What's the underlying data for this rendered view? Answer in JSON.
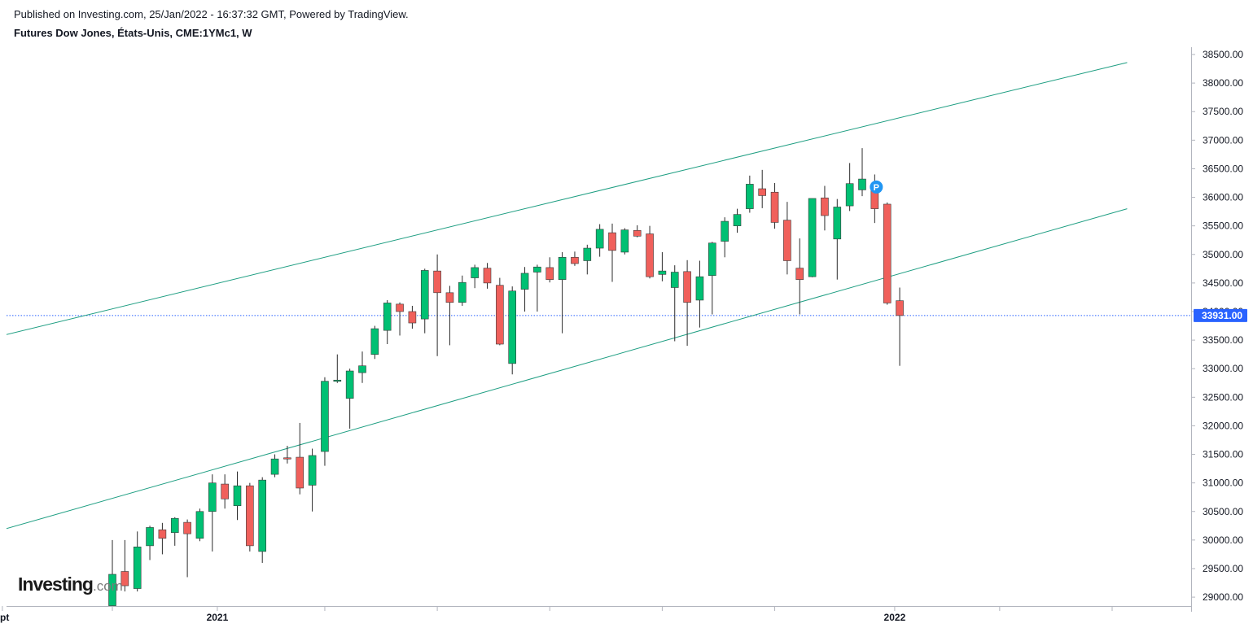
{
  "header": {
    "published": "Published on Investing.com, 25/Jan/2022 - 16:37:32 GMT, Powered by TradingView.",
    "symbol": "Futures Dow Jones, États-Unis, CME:1YMc1, W"
  },
  "logo": {
    "text": "Investing",
    "suffix": ".com"
  },
  "chart_data": {
    "type": "candlestick",
    "interval": "weekly",
    "ylim": [
      28850,
      38700
    ],
    "y_ticks": [
      "38500.00",
      "38000.00",
      "37500.00",
      "37000.00",
      "36500.00",
      "36000.00",
      "35500.00",
      "35000.00",
      "34500.00",
      "34000.00",
      "33500.00",
      "33000.00",
      "32500.00",
      "32000.00",
      "31500.00",
      "31000.00",
      "30500.00",
      "30000.00",
      "29500.00",
      "29000.00"
    ],
    "x_labels": [
      {
        "label": "pt",
        "week": -8.8
      },
      {
        "label": "2021",
        "week": 8.4
      },
      {
        "label": "2022",
        "week": 62.6
      }
    ],
    "x_ticks_weeks": [
      -8.8,
      0,
      8.4,
      17,
      26,
      35,
      44,
      53,
      62.6,
      71,
      80
    ],
    "current_price": {
      "value": 33931,
      "label": "33931.00"
    },
    "colors": {
      "up": "#00c073",
      "down": "#f0605b",
      "wick": "#2b2b2b",
      "channel": "#1e9e82",
      "price_line": "#2962ff",
      "marker": "#2196f3"
    },
    "candles": [
      {
        "o": 28850,
        "h": 30000,
        "l": 28850,
        "c": 29400
      },
      {
        "o": 29450,
        "h": 30000,
        "l": 29100,
        "c": 29200
      },
      {
        "o": 29150,
        "h": 30150,
        "l": 29100,
        "c": 29880
      },
      {
        "o": 29900,
        "h": 30250,
        "l": 29650,
        "c": 30220
      },
      {
        "o": 30180,
        "h": 30300,
        "l": 29750,
        "c": 30030
      },
      {
        "o": 30130,
        "h": 30400,
        "l": 29900,
        "c": 30380
      },
      {
        "o": 30310,
        "h": 30360,
        "l": 29350,
        "c": 30110
      },
      {
        "o": 30030,
        "h": 30550,
        "l": 29980,
        "c": 30500
      },
      {
        "o": 30500,
        "h": 31150,
        "l": 29800,
        "c": 31000
      },
      {
        "o": 30980,
        "h": 31150,
        "l": 30550,
        "c": 30720
      },
      {
        "o": 30600,
        "h": 31200,
        "l": 30350,
        "c": 30950
      },
      {
        "o": 30950,
        "h": 31000,
        "l": 29800,
        "c": 29900
      },
      {
        "o": 29800,
        "h": 31100,
        "l": 29600,
        "c": 31050
      },
      {
        "o": 31150,
        "h": 31500,
        "l": 31100,
        "c": 31420
      },
      {
        "o": 31440,
        "h": 31650,
        "l": 31340,
        "c": 31420
      },
      {
        "o": 31450,
        "h": 32050,
        "l": 30800,
        "c": 30910
      },
      {
        "o": 30960,
        "h": 31600,
        "l": 30500,
        "c": 31480
      },
      {
        "o": 31550,
        "h": 32850,
        "l": 31300,
        "c": 32780
      },
      {
        "o": 32800,
        "h": 33250,
        "l": 32750,
        "c": 32800
      },
      {
        "o": 32480,
        "h": 33000,
        "l": 31950,
        "c": 32960
      },
      {
        "o": 32930,
        "h": 33300,
        "l": 32750,
        "c": 33050
      },
      {
        "o": 33250,
        "h": 33750,
        "l": 33170,
        "c": 33700
      },
      {
        "o": 33670,
        "h": 34200,
        "l": 33430,
        "c": 34150
      },
      {
        "o": 34130,
        "h": 34160,
        "l": 33580,
        "c": 34000
      },
      {
        "o": 34000,
        "h": 34100,
        "l": 33700,
        "c": 33800
      },
      {
        "o": 33870,
        "h": 34750,
        "l": 33620,
        "c": 34720
      },
      {
        "o": 34710,
        "h": 35000,
        "l": 33220,
        "c": 34330
      },
      {
        "o": 34330,
        "h": 34450,
        "l": 33410,
        "c": 34160
      },
      {
        "o": 34160,
        "h": 34630,
        "l": 34100,
        "c": 34510
      },
      {
        "o": 34590,
        "h": 34820,
        "l": 34410,
        "c": 34770
      },
      {
        "o": 34760,
        "h": 34850,
        "l": 34400,
        "c": 34500
      },
      {
        "o": 34460,
        "h": 34590,
        "l": 33410,
        "c": 33430
      },
      {
        "o": 33090,
        "h": 34440,
        "l": 32900,
        "c": 34360
      },
      {
        "o": 34390,
        "h": 34780,
        "l": 34000,
        "c": 34670
      },
      {
        "o": 34690,
        "h": 34820,
        "l": 34000,
        "c": 34780
      },
      {
        "o": 34770,
        "h": 34950,
        "l": 34510,
        "c": 34560
      },
      {
        "o": 34560,
        "h": 35040,
        "l": 33620,
        "c": 34950
      },
      {
        "o": 34950,
        "h": 35050,
        "l": 34800,
        "c": 34840
      },
      {
        "o": 34890,
        "h": 35170,
        "l": 34650,
        "c": 35110
      },
      {
        "o": 35110,
        "h": 35530,
        "l": 34960,
        "c": 35440
      },
      {
        "o": 35380,
        "h": 35540,
        "l": 34520,
        "c": 35070
      },
      {
        "o": 35040,
        "h": 35460,
        "l": 35000,
        "c": 35430
      },
      {
        "o": 35420,
        "h": 35510,
        "l": 35300,
        "c": 35320
      },
      {
        "o": 35360,
        "h": 35500,
        "l": 34580,
        "c": 34610
      },
      {
        "o": 34650,
        "h": 35040,
        "l": 34530,
        "c": 34710
      },
      {
        "o": 34420,
        "h": 34810,
        "l": 33480,
        "c": 34690
      },
      {
        "o": 34700,
        "h": 34900,
        "l": 33400,
        "c": 34160
      },
      {
        "o": 34200,
        "h": 34890,
        "l": 33720,
        "c": 34610
      },
      {
        "o": 34630,
        "h": 35220,
        "l": 33950,
        "c": 35200
      },
      {
        "o": 35230,
        "h": 35650,
        "l": 34950,
        "c": 35580
      },
      {
        "o": 35500,
        "h": 35800,
        "l": 35380,
        "c": 35700
      },
      {
        "o": 35800,
        "h": 36380,
        "l": 35730,
        "c": 36230
      },
      {
        "o": 36150,
        "h": 36480,
        "l": 35810,
        "c": 36030
      },
      {
        "o": 36090,
        "h": 36250,
        "l": 35450,
        "c": 35560
      },
      {
        "o": 35600,
        "h": 35920,
        "l": 34650,
        "c": 34890
      },
      {
        "o": 34760,
        "h": 35280,
        "l": 33950,
        "c": 34560
      },
      {
        "o": 34610,
        "h": 35980,
        "l": 34600,
        "c": 35980
      },
      {
        "o": 35990,
        "h": 36200,
        "l": 35420,
        "c": 35680
      },
      {
        "o": 35270,
        "h": 35970,
        "l": 34560,
        "c": 35830
      },
      {
        "o": 35850,
        "h": 36600,
        "l": 35760,
        "c": 36240
      },
      {
        "o": 36130,
        "h": 36860,
        "l": 36020,
        "c": 36320
      },
      {
        "o": 36140,
        "h": 36400,
        "l": 35550,
        "c": 35800
      },
      {
        "o": 35880,
        "h": 35910,
        "l": 34120,
        "c": 34150
      },
      {
        "o": 34190,
        "h": 34420,
        "l": 33050,
        "c": 33930
      }
    ],
    "channel_lines": [
      {
        "name": "upper",
        "points": [
          {
            "week": -8.8,
            "price": 33580
          },
          {
            "week": 81.2,
            "price": 38360
          }
        ]
      },
      {
        "name": "lower",
        "points": [
          {
            "week": -8.8,
            "price": 30180
          },
          {
            "week": 81.2,
            "price": 35800
          }
        ]
      }
    ],
    "markers": [
      {
        "label": "P",
        "week": 61,
        "price": 36180
      }
    ]
  }
}
